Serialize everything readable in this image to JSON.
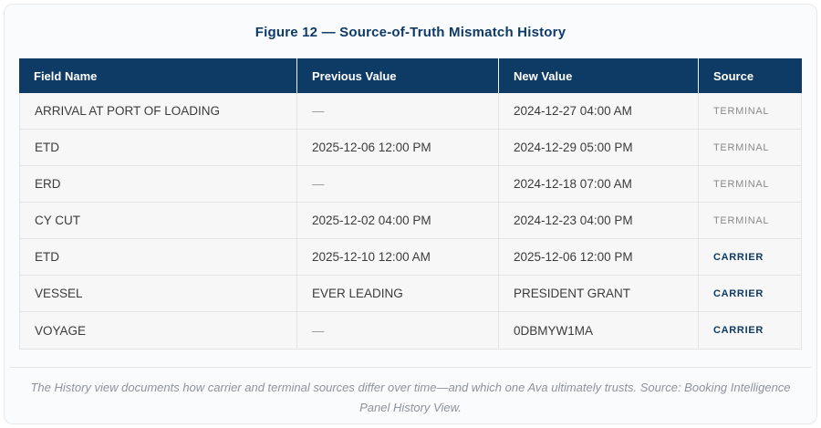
{
  "figure": {
    "title": "Figure 12 — Source-of-Truth Mismatch History",
    "caption": "The History view documents how carrier and terminal sources differ over time—and which one Ava ultimately trusts. Source: Booking Intelligence Panel History View."
  },
  "table": {
    "columns": [
      "Field Name",
      "Previous Value",
      "New Value",
      "Source"
    ],
    "empty_value_glyph": "—",
    "rows": [
      {
        "field": "ARRIVAL AT PORT OF LOADING",
        "previous": "—",
        "new": "2024-12-27 04:00 AM",
        "source": "TERMINAL"
      },
      {
        "field": "ETD",
        "previous": "2025-12-06 12:00 PM",
        "new": "2024-12-29 05:00 PM",
        "source": "TERMINAL"
      },
      {
        "field": "ERD",
        "previous": "—",
        "new": "2024-12-18 07:00 AM",
        "source": "TERMINAL"
      },
      {
        "field": "CY CUT",
        "previous": "2025-12-02 04:00 PM",
        "new": "2024-12-23 04:00 PM",
        "source": "TERMINAL"
      },
      {
        "field": "ETD",
        "previous": "2025-12-10 12:00 AM",
        "new": "2025-12-06 12:00 PM",
        "source": "CARRIER"
      },
      {
        "field": "VESSEL",
        "previous": "EVER LEADING",
        "new": "PRESIDENT GRANT",
        "source": "CARRIER"
      },
      {
        "field": "VOYAGE",
        "previous": "—",
        "new": "0DBMYW1MA",
        "source": "CARRIER"
      }
    ]
  },
  "colors": {
    "accent_navy": "#0e3a66",
    "terminal_source_gray": "#8a8a8a",
    "row_background": "#f7f7f8"
  }
}
